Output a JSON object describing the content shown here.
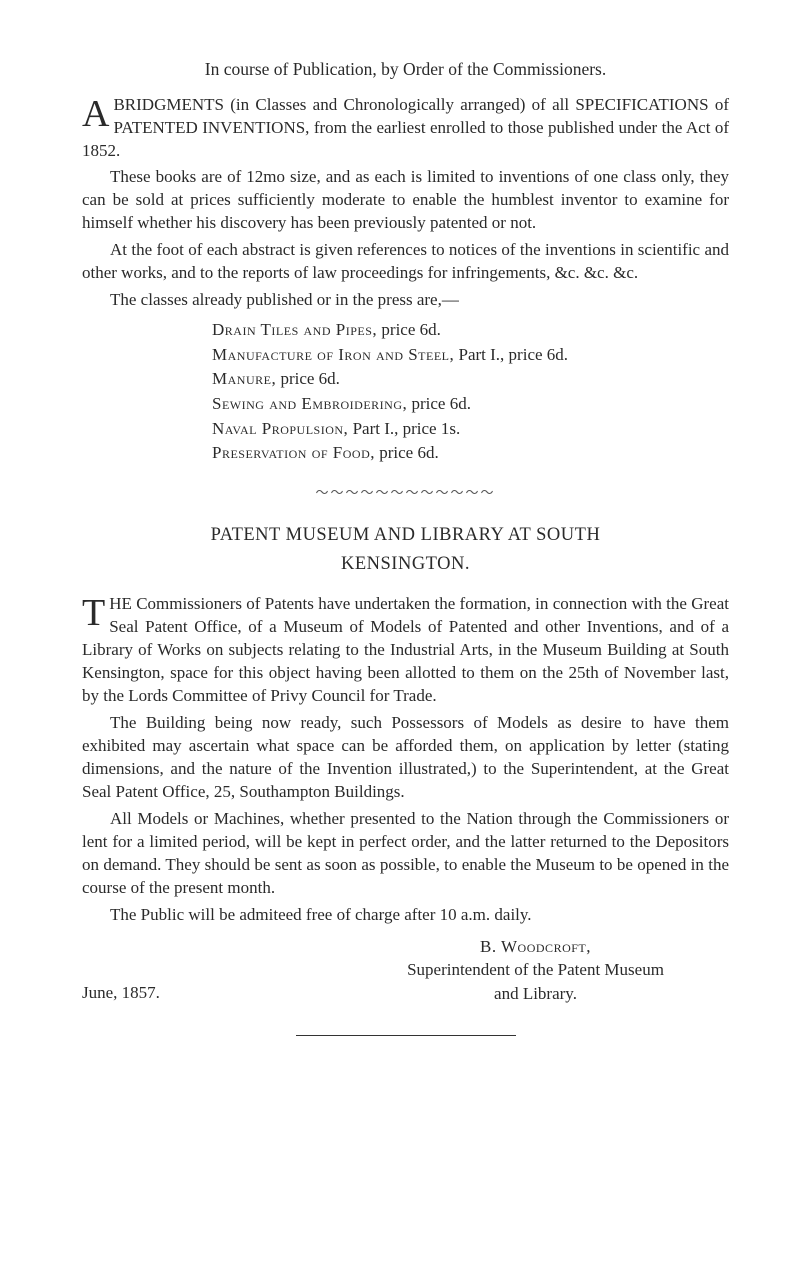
{
  "doc": {
    "header_title": "In course of Publication, by Order of the Commissioners.",
    "section1": {
      "dropcap": "A",
      "p1_after_dropcap": "BRIDGMENTS (in Classes and Chronologically arranged) of all SPECIFICATIONS of PATENTED INVENTIONS, from the earliest enrolled to those published under the Act of 1852.",
      "p2": "These books are of 12mo size, and as each is limited to inven­tions of one class only, they can be sold at prices sufficiently moderate to enable the humblest inventor to examine for himself whether his discovery has been previously patented or not.",
      "p3": "At the foot of each abstract is given references to notices of the inventions in scientific and other works, and to the reports of law proceedings for infringements, &c. &c. &c.",
      "p4": "The classes already published or in the press are,—",
      "list": [
        {
          "caps": "Drain Tiles and Pipes,",
          "rest": " price 6d."
        },
        {
          "caps": "Manufacture of Iron and Steel,",
          "rest": " Part I., price 6d."
        },
        {
          "caps": "Manure,",
          "rest": " price 6d."
        },
        {
          "caps": "Sewing and Embroidering,",
          "rest": " price 6d."
        },
        {
          "caps": "Naval Propulsion,",
          "rest": " Part I., price 1s."
        },
        {
          "caps": "Preservation of Food,",
          "rest": " price 6d."
        }
      ]
    },
    "separator": "～～～～～～～～～～～～",
    "section2": {
      "title": "PATENT MUSEUM AND LIBRARY AT SOUTH",
      "subtitle": "KENSINGTON.",
      "dropcap": "T",
      "p1_after_dropcap": "HE Commissioners of Patents have undertaken the formation, in connection with the Great Seal Patent Office, of a Museum of Models of Patented and other Inventions, and of a Library of Works on subjects relating to the Industrial Arts, in the Museum Building at South Kensington, space for this object having been allotted to them on the 25th of November last, by the Lords Committee of Privy Council for Trade.",
      "p2": "The Building being now ready, such Possessors of Models as desire to have them exhibited may ascertain what space can be afforded them, on application by letter (stating dimensions, and the nature of the Invention illustrated,) to the Superintendent, at the Great Seal Patent Office, 25, Southampton Buildings.",
      "p3": "All Models or Machines, whether presented to the Nation through the Commissioners or lent for a limited period, will be kept in per­fect order, and the latter returned to the Depositors on demand. They should be sent as soon as possible, to enable the Museum to be opened in the course of the present month.",
      "p4": "The Public will be admiteed free of charge after 10 a.m. daily.",
      "signature": {
        "name_caps": "B. Woodcroft,",
        "role_line1": "Superintendent of the Patent Museum",
        "role_line2": "and Library.",
        "date": "June, 1857."
      }
    }
  }
}
